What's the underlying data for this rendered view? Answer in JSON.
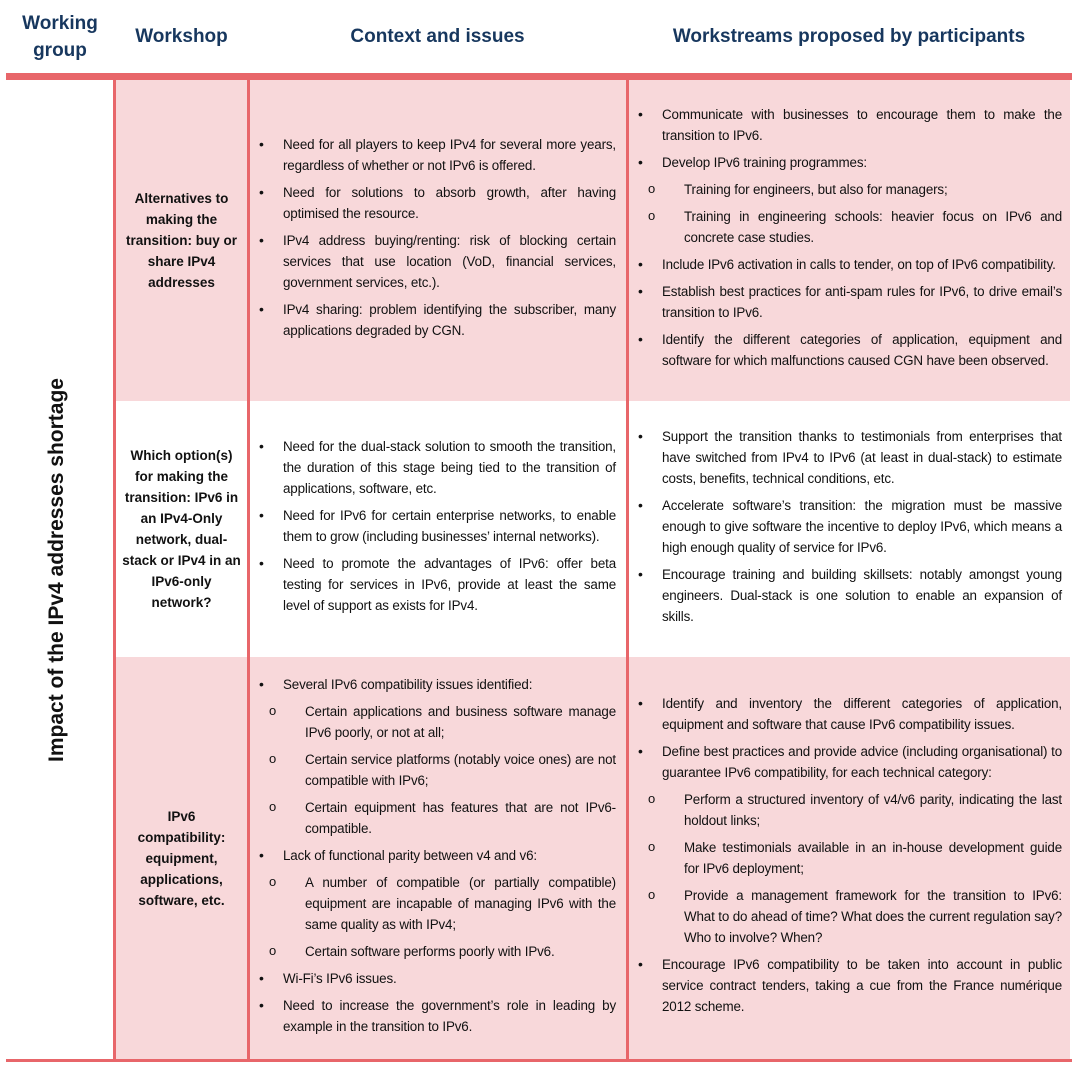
{
  "header": {
    "working_group": "Working group",
    "workshop": "Workshop",
    "context": "Context and issues",
    "workstreams": "Workstreams proposed by participants"
  },
  "working_group": "Impact of the IPv4 addresses shortage",
  "colors": {
    "accent": "#E8666A",
    "row_fill": "#F8D8DA",
    "header_text": "#17375E"
  },
  "rows": [
    {
      "workshop": "Alternatives to making the transition: buy or share IPv4 addresses",
      "context": [
        {
          "level": 1,
          "text": "Need for all players to keep IPv4 for several more years, regardless of whether or not IPv6 is offered."
        },
        {
          "level": 1,
          "text": "Need for solutions to absorb growth, after having optimised the resource."
        },
        {
          "level": 1,
          "text": "IPv4 address buying/renting: risk of blocking certain services that use location (VoD, financial services, government services, etc.)."
        },
        {
          "level": 1,
          "text": "IPv4 sharing: problem identifying the subscriber, many applications degraded by CGN."
        }
      ],
      "workstreams": [
        {
          "level": 1,
          "text": "Communicate with businesses to encourage them to make the transition to IPv6."
        },
        {
          "level": 1,
          "text": "Develop IPv6 training programmes:"
        },
        {
          "level": 2,
          "text": "Training for engineers, but also for managers;"
        },
        {
          "level": 2,
          "text": "Training in engineering schools: heavier focus on IPv6 and concrete case studies."
        },
        {
          "level": 1,
          "text": "Include IPv6 activation in calls to tender, on top of IPv6 compatibility."
        },
        {
          "level": 1,
          "text": "Establish best practices for anti-spam rules for IPv6, to drive email’s transition to IPv6."
        },
        {
          "level": 1,
          "text": "Identify the different categories of application, equipment and software for which malfunctions caused CGN have been observed."
        }
      ]
    },
    {
      "workshop": "Which option(s) for making the transition: IPv6 in an IPv4-Only network, dual-stack or IPv4 in an IPv6-only network?",
      "context": [
        {
          "level": 1,
          "text": "Need for the dual-stack solution to smooth the transition, the duration of this stage being tied to the transition of applications, software, etc."
        },
        {
          "level": 1,
          "text": "Need for IPv6 for certain enterprise networks, to enable them to grow (including businesses’ internal networks)."
        },
        {
          "level": 1,
          "text": "Need to promote the advantages of IPv6: offer beta testing for services in IPv6, provide at least the same level of support as exists for IPv4."
        }
      ],
      "workstreams": [
        {
          "level": 1,
          "text": "Support the transition thanks to testimonials from enterprises that have switched from IPv4 to IPv6 (at least in dual-stack) to estimate costs, benefits, technical conditions, etc."
        },
        {
          "level": 1,
          "text": "Accelerate software’s transition: the migration must be massive enough to give software the incentive to deploy IPv6, which means a high enough quality of service for IPv6."
        },
        {
          "level": 1,
          "text": "Encourage training and building skillsets: notably amongst young engineers. Dual-stack is one solution to enable an expansion of skills."
        }
      ]
    },
    {
      "workshop": "IPv6 compatibility: equipment, applications, software, etc.",
      "context": [
        {
          "level": 1,
          "text": "Several IPv6 compatibility issues identified:"
        },
        {
          "level": 2,
          "text": "Certain applications and business software manage IPv6 poorly, or not at all;"
        },
        {
          "level": 2,
          "text": "Certain service platforms (notably voice ones) are not compatible with IPv6;"
        },
        {
          "level": 2,
          "text": "Certain equipment has features that are not IPv6-compatible."
        },
        {
          "level": 1,
          "text": "Lack of functional parity between v4 and v6:"
        },
        {
          "level": 2,
          "text": "A number of compatible (or partially compatible) equipment are incapable of managing IPv6 with the same quality as with IPv4;"
        },
        {
          "level": 2,
          "text": "Certain software performs poorly with IPv6."
        },
        {
          "level": 1,
          "text": "Wi-Fi’s IPv6 issues."
        },
        {
          "level": 1,
          "text": "Need to increase the government’s role in leading by example in the transition to IPv6."
        }
      ],
      "workstreams": [
        {
          "level": 1,
          "text": "Identify and inventory the different categories of application, equipment and software that cause IPv6 compatibility issues."
        },
        {
          "level": 1,
          "text": "Define best practices and provide advice (including organisational) to guarantee IPv6 compatibility, for each technical category:"
        },
        {
          "level": 2,
          "text": "Perform a structured inventory of v4/v6 parity, indicating the last holdout links;"
        },
        {
          "level": 2,
          "text": "Make testimonials available in an in-house development guide for IPv6 deployment;"
        },
        {
          "level": 2,
          "text": "Provide a management framework for the transition to IPv6: What to do ahead of time? What does the current regulation say? Who to involve? When?"
        },
        {
          "level": 1,
          "text": "Encourage IPv6 compatibility to be taken into account in public service contract tenders, taking a cue from the France numérique 2012 scheme."
        }
      ]
    }
  ]
}
